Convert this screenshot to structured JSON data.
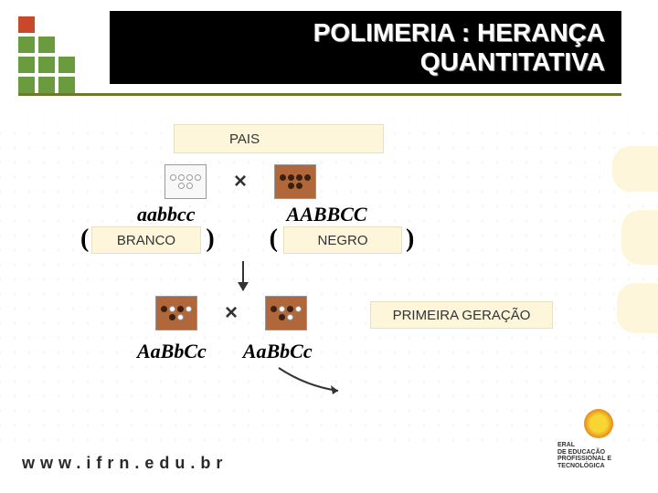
{
  "header": {
    "title_line1": "POLIMERIA : HERANÇA",
    "title_line2": "QUANTITATIVA",
    "title_color": "#ffffff",
    "title_bg": "#000000",
    "title_fontsize": 28,
    "hr_color": "#6a7a2a"
  },
  "logo": {
    "grid": [
      [
        "#c9482a",
        "none",
        "none"
      ],
      [
        "#6a9b3e",
        "#6a9b3e",
        "none"
      ],
      [
        "#6a9b3e",
        "#6a9b3e",
        "#6a9b3e"
      ],
      [
        "#6a9b3e",
        "#6a9b3e",
        "#6a9b3e"
      ]
    ],
    "cell_size": 18,
    "gap": 4
  },
  "labels": {
    "pais": "PAIS",
    "branco": "BRANCO",
    "negro": "NEGRO",
    "primeira": "PRIMEIRA GERAÇÃO",
    "box_bg": "#fdf6da",
    "box_border": "#e8e0bf",
    "text_color": "#333333",
    "fontsize": 15
  },
  "cross": {
    "p1_genotype": "aabbcc",
    "p2_genotype": "AABBCC",
    "f1_genotype_1": "AaBbCc",
    "f1_genotype_2": "AaBbCc",
    "cross_symbol": "×",
    "p1_box_bg": "#f8f8f8",
    "p2_box_bg": "#b0683a",
    "f1_box_bg": "#b0683a",
    "empty_allele_fill": "#ffffff",
    "empty_allele_border": "#999999",
    "filled_allele_fill": "#3a2010",
    "allele_count": 6,
    "genotype_font": "Times New Roman",
    "genotype_fontsize": 22
  },
  "footer": {
    "url": "www.ifrn.edu.br",
    "url_letterspacing": 6,
    "url_fontsize": 18,
    "inst_line1": "ERAL",
    "inst_line2": "DE EDUCAÇÃO",
    "inst_line3": "PROFISSIONAL E",
    "inst_line4": "TECNOLÓGICA"
  },
  "colors": {
    "page_bg": "#ffffff",
    "dot_grid": "#d0d0d0"
  }
}
